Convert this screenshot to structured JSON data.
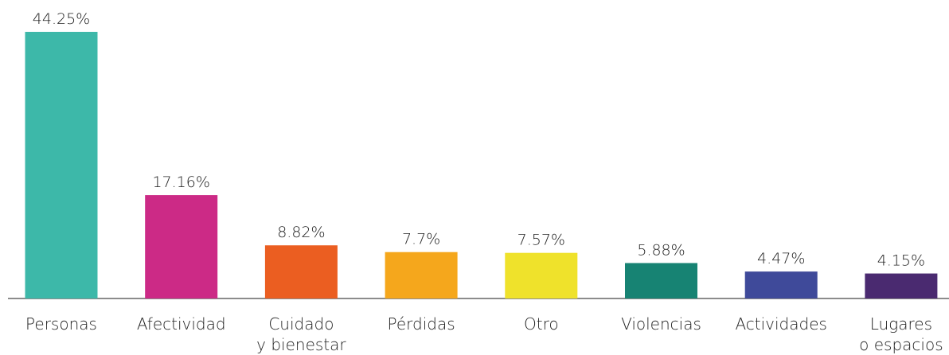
{
  "chart_data": {
    "type": "bar",
    "categories": [
      "Personas",
      "Afectividad",
      "Cuidado\ny bienestar",
      "Pérdidas",
      "Otro",
      "Violencias",
      "Actividades",
      "Lugares\no espacios"
    ],
    "values": [
      44.25,
      17.16,
      8.82,
      7.7,
      7.57,
      5.88,
      4.47,
      4.15
    ],
    "value_labels": [
      "44.25%",
      "17.16%",
      "8.82%",
      "7.7%",
      "7.57%",
      "5.88%",
      "4.47%",
      "4.15%"
    ],
    "colors": [
      "#3db8a9",
      "#cc2a86",
      "#eb5e21",
      "#f5a71c",
      "#efe22b",
      "#178373",
      "#3f4a9a",
      "#4a2a70"
    ]
  }
}
